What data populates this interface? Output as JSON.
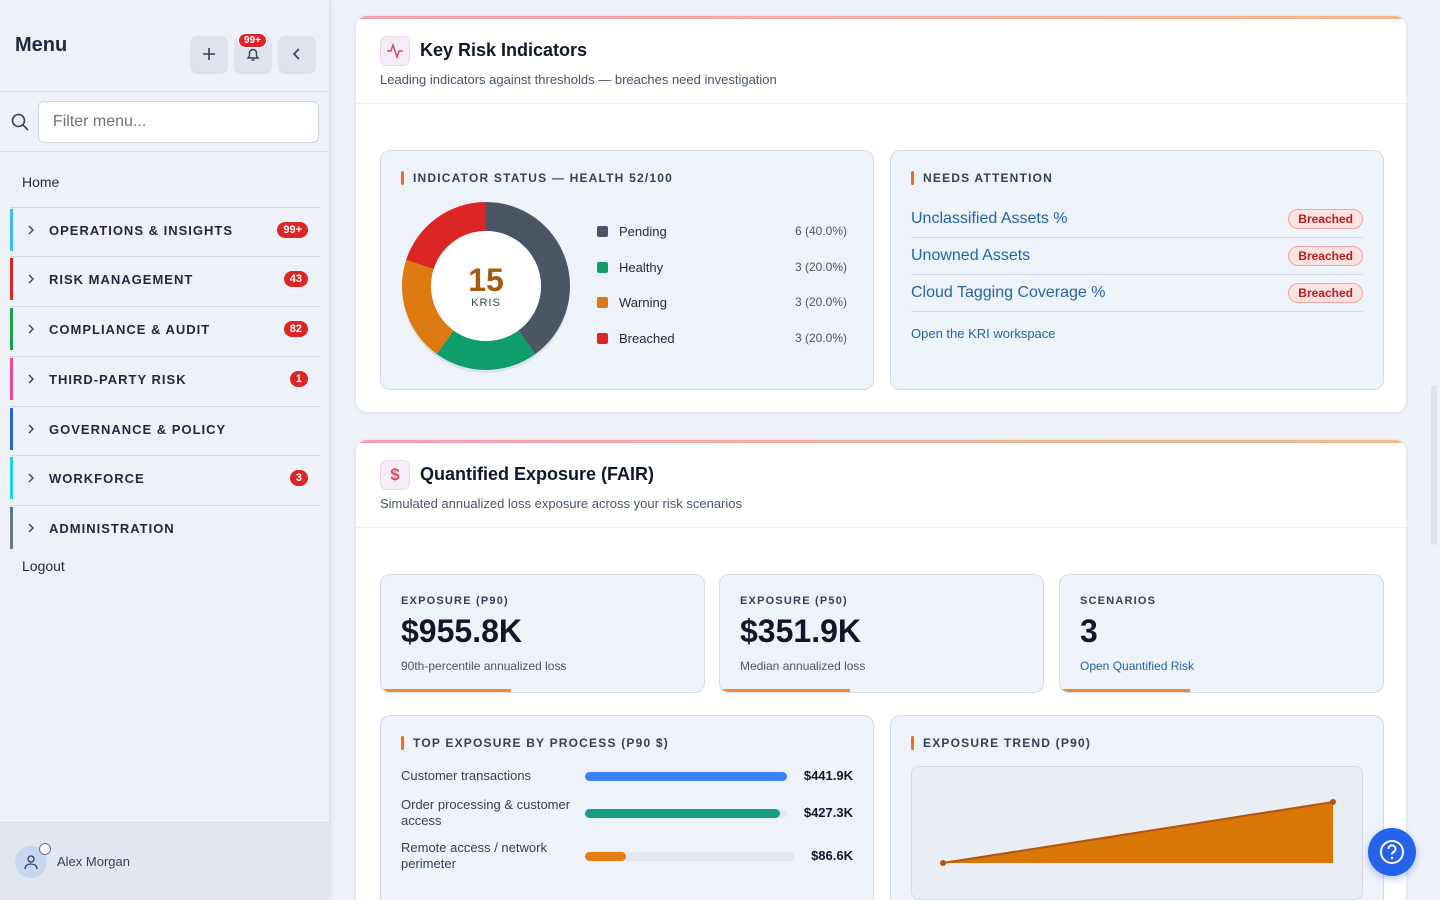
{
  "sidebar": {
    "title": "Menu",
    "notification_badge": "99+",
    "filter_placeholder": "Filter menu...",
    "home": "Home",
    "items": [
      {
        "label": "OPERATIONS & INSIGHTS",
        "count": "99+",
        "color": "#38bdf8"
      },
      {
        "label": "RISK MANAGEMENT",
        "count": "43",
        "color": "#dc2626"
      },
      {
        "label": "COMPLIANCE & AUDIT",
        "count": "82",
        "color": "#16a34a"
      },
      {
        "label": "THIRD-PARTY RISK",
        "count": "1",
        "color": "#ec4899"
      },
      {
        "label": "GOVERNANCE & POLICY",
        "count": "",
        "color": "#2563eb"
      },
      {
        "label": "WORKFORCE",
        "count": "3",
        "color": "#22d3ee"
      },
      {
        "label": "ADMINISTRATION",
        "count": "",
        "color": "#64748b"
      }
    ],
    "logout": "Logout",
    "user": "Alex Morgan"
  },
  "kri": {
    "title": "Key Risk Indicators",
    "subtitle": "Leading indicators against thresholds — breaches need investigation",
    "status_title": "INDICATOR STATUS — HEALTH 52/100",
    "total": "15",
    "total_label": "KRIS",
    "legend": [
      {
        "label": "Pending",
        "value": "6 (40.0%)",
        "pct": 40,
        "color": "#4b5563"
      },
      {
        "label": "Healthy",
        "value": "3 (20.0%)",
        "pct": 20,
        "color": "#0f9d6b"
      },
      {
        "label": "Warning",
        "value": "3 (20.0%)",
        "pct": 20,
        "color": "#dd7a12"
      },
      {
        "label": "Breached",
        "value": "3 (20.0%)",
        "pct": 20,
        "color": "#dc2626"
      }
    ],
    "attention_title": "NEEDS ATTENTION",
    "attention": [
      {
        "name": "Unclassified Assets %",
        "status": "Breached"
      },
      {
        "name": "Unowned Assets",
        "status": "Breached"
      },
      {
        "name": "Cloud Tagging Coverage %",
        "status": "Breached"
      }
    ],
    "workspace_link": "Open the KRI workspace"
  },
  "fair": {
    "title": "Quantified Exposure (FAIR)",
    "subtitle": "Simulated annualized loss exposure across your risk scenarios",
    "stats": [
      {
        "label": "EXPOSURE (P90)",
        "value": "$955.8K",
        "desc": "90th-percentile annualized loss"
      },
      {
        "label": "EXPOSURE (P50)",
        "value": "$351.9K",
        "desc": "Median annualized loss"
      },
      {
        "label": "SCENARIOS",
        "value": "3",
        "desc": "Open Quantified Risk"
      }
    ],
    "process_title": "TOP EXPOSURE BY PROCESS (P90 $)",
    "processes": [
      {
        "name": "Customer transactions",
        "value": "$441.9K",
        "amount": 441.9,
        "color": "#3b82f6"
      },
      {
        "name": "Order processing & customer access",
        "value": "$427.3K",
        "amount": 427.3,
        "color": "#169c87"
      },
      {
        "name": "Remote access / network perimeter",
        "value": "$86.6K",
        "amount": 86.6,
        "color": "#ea7c12"
      }
    ],
    "trend_title": "EXPOSURE TREND (P90)"
  }
}
